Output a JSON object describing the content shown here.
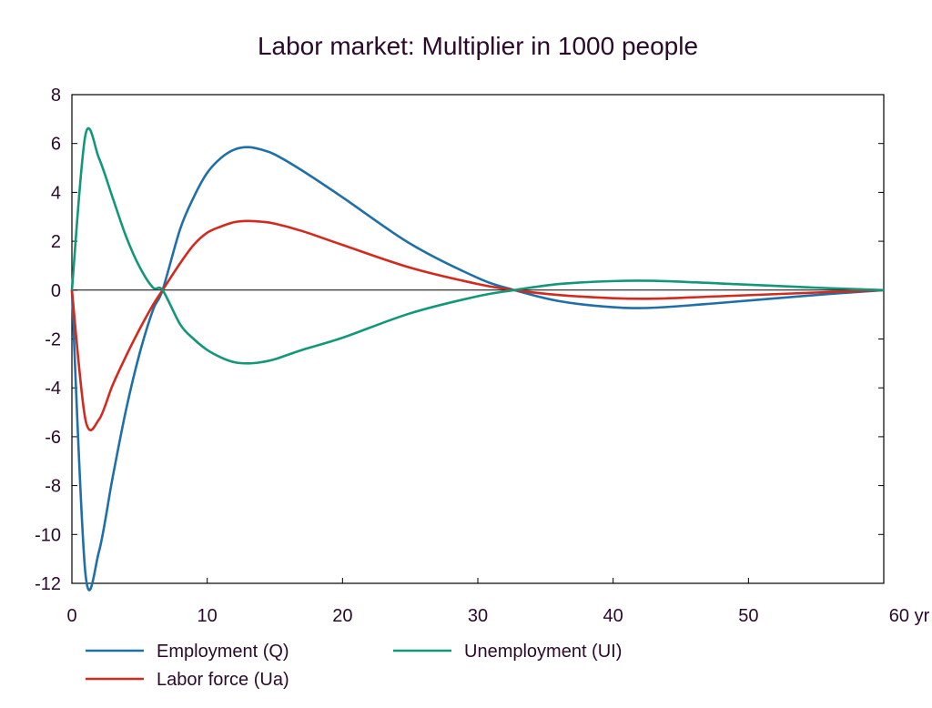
{
  "chart_data": {
    "type": "line",
    "title": "Labor market: Multiplier in 1000 people",
    "xlabel": "",
    "ylabel": "",
    "x_unit_label": "yr",
    "xlim": [
      0,
      60
    ],
    "ylim": [
      -12,
      8
    ],
    "x_ticks": [
      0,
      10,
      20,
      30,
      40,
      50,
      60
    ],
    "x_tick_labels": [
      "0",
      "10",
      "20",
      "30",
      "40",
      "50",
      "60 yr"
    ],
    "y_ticks": [
      8,
      6,
      4,
      2,
      0,
      -2,
      -4,
      -6,
      -8,
      -10,
      -12
    ],
    "y_tick_labels": [
      "8",
      "6",
      "4",
      "2",
      "0",
      "-2",
      "-4",
      "-6",
      "-8",
      "-10",
      "-12"
    ],
    "grid": false,
    "zero_line": true,
    "legend_position": "bottom",
    "x": [
      0,
      1,
      2,
      3,
      4,
      5,
      6,
      6.7,
      8,
      9,
      10,
      11,
      12,
      13,
      14,
      15,
      17,
      20,
      25,
      30,
      32.7,
      36,
      40,
      43,
      48,
      55,
      60
    ],
    "series": [
      {
        "name": "Employment (Q)",
        "color": "#1f6fa8",
        "values": [
          0,
          -11.6,
          -10.7,
          -7.7,
          -4.9,
          -2.6,
          -0.8,
          0,
          2.5,
          3.8,
          4.8,
          5.4,
          5.75,
          5.85,
          5.75,
          5.55,
          4.9,
          3.8,
          1.9,
          0.5,
          0,
          -0.45,
          -0.7,
          -0.72,
          -0.52,
          -0.2,
          0
        ]
      },
      {
        "name": "Labor force (Ua)",
        "color": "#d12a1e",
        "values": [
          0,
          -5.3,
          -5.3,
          -3.9,
          -2.7,
          -1.6,
          -0.6,
          0,
          1.1,
          1.85,
          2.35,
          2.6,
          2.78,
          2.83,
          2.8,
          2.72,
          2.42,
          1.85,
          0.92,
          0.25,
          0,
          -0.2,
          -0.33,
          -0.35,
          -0.25,
          -0.1,
          0
        ]
      },
      {
        "name": "Unemployment (UI)",
        "color": "#13977a",
        "values": [
          0,
          6.35,
          5.4,
          3.8,
          2.2,
          0.95,
          0.1,
          0,
          -1.4,
          -2.0,
          -2.45,
          -2.75,
          -2.95,
          -3.0,
          -2.95,
          -2.83,
          -2.45,
          -1.95,
          -0.95,
          -0.25,
          0,
          0.25,
          0.37,
          0.38,
          0.27,
          0.1,
          0
        ]
      }
    ]
  }
}
